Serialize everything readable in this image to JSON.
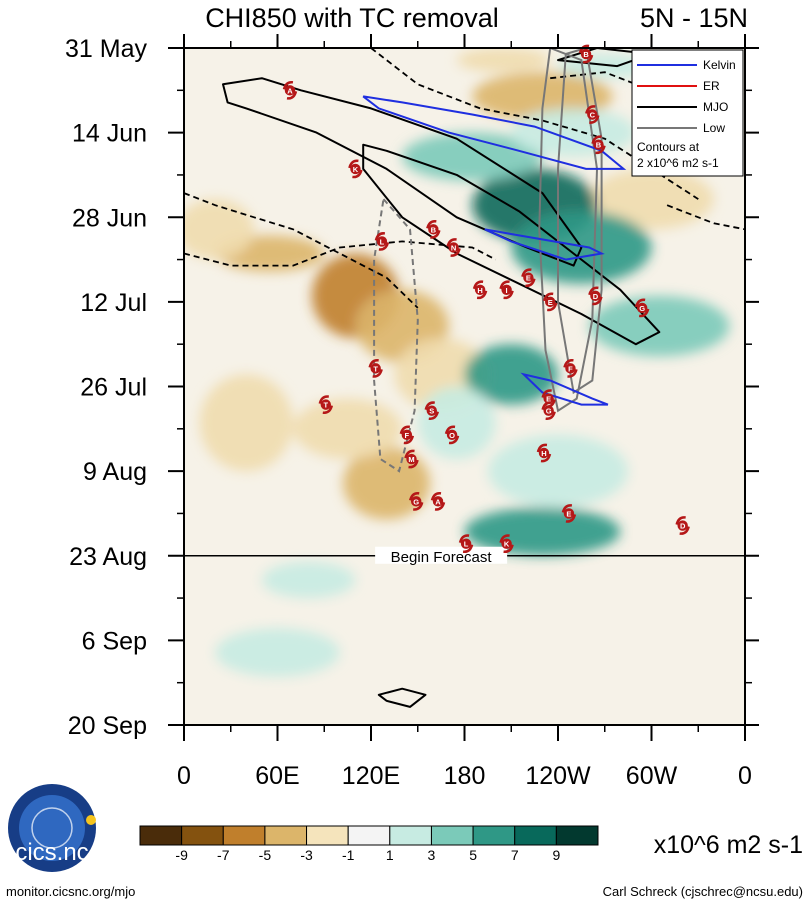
{
  "chart_data": {
    "type": "heatmap",
    "title": "CHI850 with TC removal",
    "subtitle": "5N - 15N",
    "x_ticks": [
      {
        "lon": 0,
        "label": "0"
      },
      {
        "lon": 60,
        "label": "60E"
      },
      {
        "lon": 120,
        "label": "120E"
      },
      {
        "lon": 180,
        "label": "180"
      },
      {
        "lon": 240,
        "label": "120W"
      },
      {
        "lon": 300,
        "label": "60W"
      },
      {
        "lon": 360,
        "label": "0"
      }
    ],
    "x_range": [
      0,
      360
    ],
    "y_ticks": [
      {
        "day": 0,
        "label": "31 May"
      },
      {
        "day": 14,
        "label": "14 Jun"
      },
      {
        "day": 28,
        "label": "28 Jun"
      },
      {
        "day": 42,
        "label": "12 Jul"
      },
      {
        "day": 56,
        "label": "26 Jul"
      },
      {
        "day": 70,
        "label": "9 Aug"
      },
      {
        "day": 84,
        "label": "23 Aug"
      },
      {
        "day": 98,
        "label": "6 Sep"
      },
      {
        "day": 112,
        "label": "20 Sep"
      }
    ],
    "y_range": [
      0,
      112
    ],
    "forecast_line": {
      "day": 84,
      "label": "Begin Forecast"
    },
    "legend": {
      "placement": "top-right",
      "entries": [
        {
          "name": "Kelvin",
          "color": "#1f2fe0"
        },
        {
          "name": "ER",
          "color": "#e01010"
        },
        {
          "name": "MJO",
          "color": "#000000"
        },
        {
          "name": "Low",
          "color": "#777777"
        }
      ],
      "note_line1": "Contours at",
      "note_line2": "2 x10^6 m2 s-1"
    },
    "colorbar": {
      "labels": [
        "-9",
        "-7",
        "-5",
        "-3",
        "-1",
        "1",
        "3",
        "5",
        "7",
        "9"
      ],
      "colors": [
        "#4a2c0a",
        "#84520f",
        "#c07f2c",
        "#dcb56a",
        "#f5e4bc",
        "#f4f4f4",
        "#c7ebe2",
        "#7bcab9",
        "#2f9886",
        "#08695b",
        "#02392f"
      ],
      "units": "x10^6 m2 s-1"
    },
    "field_features": [
      {
        "type": "dry",
        "lon": 55,
        "day": 34,
        "rlon": 35,
        "rday": 3,
        "level": 2
      },
      {
        "type": "dry",
        "lon": 110,
        "day": 41,
        "rlon": 28,
        "rday": 7,
        "level": 3
      },
      {
        "type": "dry",
        "lon": 140,
        "day": 46,
        "rlon": 30,
        "rday": 6,
        "level": 2
      },
      {
        "type": "dry",
        "lon": 130,
        "day": 72,
        "rlon": 28,
        "rday": 6,
        "level": 2
      },
      {
        "type": "dry",
        "lon": 105,
        "day": 63,
        "rlon": 35,
        "rday": 5,
        "level": 1
      },
      {
        "type": "dry",
        "lon": 20,
        "day": 30,
        "rlon": 25,
        "rday": 5,
        "level": 1
      },
      {
        "type": "dry",
        "lon": 230,
        "day": 8,
        "rlon": 45,
        "rday": 4,
        "level": 2
      },
      {
        "type": "dry",
        "lon": 205,
        "day": 2,
        "rlon": 30,
        "rday": 2,
        "level": 1
      },
      {
        "type": "dry",
        "lon": 165,
        "day": 54,
        "rlon": 30,
        "rday": 6,
        "level": 1
      },
      {
        "type": "dry",
        "lon": 40,
        "day": 62,
        "rlon": 30,
        "rday": 8,
        "level": 1
      },
      {
        "type": "dry",
        "lon": 300,
        "day": 25,
        "rlon": 40,
        "rday": 5,
        "level": 1
      },
      {
        "type": "wet",
        "lon": 225,
        "day": 26,
        "rlon": 40,
        "rday": 6,
        "level": 4
      },
      {
        "type": "wet",
        "lon": 255,
        "day": 33,
        "rlon": 45,
        "rday": 6,
        "level": 3
      },
      {
        "type": "wet",
        "lon": 305,
        "day": 46,
        "rlon": 45,
        "rday": 5,
        "level": 2
      },
      {
        "type": "wet",
        "lon": 210,
        "day": 54,
        "rlon": 30,
        "rday": 5,
        "level": 3
      },
      {
        "type": "wet",
        "lon": 230,
        "day": 80,
        "rlon": 50,
        "rday": 4,
        "level": 3
      },
      {
        "type": "wet",
        "lon": 185,
        "day": 18,
        "rlon": 45,
        "rday": 4,
        "level": 2
      },
      {
        "type": "wet",
        "lon": 240,
        "day": 70,
        "rlon": 45,
        "rday": 6,
        "level": 1
      },
      {
        "type": "wet",
        "lon": 175,
        "day": 62,
        "rlon": 25,
        "rday": 6,
        "level": 1
      },
      {
        "type": "wet",
        "lon": 270,
        "day": 3,
        "rlon": 30,
        "rday": 2,
        "level": 1
      },
      {
        "type": "wet",
        "lon": 60,
        "day": 100,
        "rlon": 40,
        "rday": 4,
        "level": 1
      },
      {
        "type": "wet",
        "lon": 80,
        "day": 88,
        "rlon": 30,
        "rday": 3,
        "level": 1
      },
      {
        "type": "wet",
        "lon": 250,
        "day": 14,
        "rlon": 40,
        "rday": 4,
        "level": 1
      }
    ],
    "contours": {
      "kelvin": [
        [
          [
            115,
            8
          ],
          [
            140,
            9
          ],
          [
            185,
            11
          ],
          [
            225,
            13
          ],
          [
            268,
            17
          ],
          [
            282,
            20
          ],
          [
            258,
            20
          ],
          [
            215,
            17
          ],
          [
            170,
            14
          ],
          [
            125,
            10
          ]
        ],
        [
          [
            193,
            30
          ],
          [
            215,
            31
          ],
          [
            260,
            33
          ],
          [
            268,
            34
          ],
          [
            245,
            35
          ],
          [
            210,
            32
          ]
        ],
        [
          [
            218,
            54
          ],
          [
            235,
            55
          ],
          [
            262,
            58
          ],
          [
            272,
            59
          ],
          [
            255,
            59
          ],
          [
            230,
            57
          ]
        ]
      ],
      "mjo": [
        [
          [
            25,
            6
          ],
          [
            50,
            5
          ],
          [
            75,
            7
          ],
          [
            120,
            10
          ],
          [
            175,
            15
          ],
          [
            230,
            24
          ],
          [
            255,
            33
          ],
          [
            250,
            36
          ],
          [
            220,
            33
          ],
          [
            175,
            28
          ],
          [
            130,
            20
          ],
          [
            85,
            14
          ],
          [
            40,
            10
          ],
          [
            28,
            9
          ]
        ],
        [
          [
            115,
            16
          ],
          [
            130,
            17
          ],
          [
            175,
            21
          ],
          [
            215,
            27
          ],
          [
            245,
            33
          ],
          [
            280,
            40
          ],
          [
            305,
            47
          ],
          [
            290,
            49
          ],
          [
            255,
            44
          ],
          [
            215,
            39
          ],
          [
            175,
            34
          ],
          [
            140,
            28
          ],
          [
            115,
            20
          ]
        ],
        [
          [
            240,
            2
          ],
          [
            265,
            0
          ],
          [
            300,
            1
          ],
          [
            278,
            3
          ]
        ],
        [
          [
            125,
            107
          ],
          [
            140,
            106
          ],
          [
            155,
            107
          ],
          [
            145,
            109
          ],
          [
            130,
            108
          ]
        ]
      ],
      "low": [
        [
          [
            235,
            0
          ],
          [
            255,
            2
          ],
          [
            265,
            20
          ],
          [
            262,
            45
          ],
          [
            252,
            58
          ],
          [
            240,
            60
          ],
          [
            232,
            50
          ],
          [
            228,
            30
          ],
          [
            230,
            10
          ]
        ],
        [
          [
            245,
            1
          ],
          [
            258,
            0
          ],
          [
            268,
            15
          ],
          [
            268,
            40
          ],
          [
            262,
            55
          ],
          [
            250,
            57
          ],
          [
            240,
            42
          ],
          [
            240,
            20
          ]
        ]
      ],
      "low_dashed": [
        [
          [
            128,
            25
          ],
          [
            145,
            30
          ],
          [
            150,
            45
          ],
          [
            148,
            60
          ],
          [
            138,
            70
          ],
          [
            126,
            68
          ],
          [
            122,
            55
          ],
          [
            122,
            35
          ]
        ]
      ],
      "dashed": [
        [
          [
            0,
            24
          ],
          [
            20,
            26
          ],
          [
            45,
            28
          ],
          [
            70,
            30
          ],
          [
            100,
            34
          ],
          [
            130,
            38
          ],
          [
            150,
            43
          ]
        ],
        [
          [
            0,
            34
          ],
          [
            30,
            36
          ],
          [
            70,
            36
          ],
          [
            100,
            33
          ],
          [
            140,
            32
          ],
          [
            185,
            33
          ],
          [
            200,
            35
          ]
        ],
        [
          [
            120,
            0
          ],
          [
            150,
            6
          ],
          [
            190,
            10
          ],
          [
            230,
            12
          ],
          [
            270,
            15
          ],
          [
            300,
            20
          ],
          [
            330,
            25
          ]
        ],
        [
          [
            235,
            5
          ],
          [
            270,
            4
          ],
          [
            300,
            7
          ],
          [
            330,
            14
          ],
          [
            355,
            20
          ]
        ],
        [
          [
            310,
            26
          ],
          [
            340,
            29
          ],
          [
            360,
            30
          ]
        ]
      ]
    },
    "storms": [
      {
        "label": "A",
        "lon": 68,
        "day": 7
      },
      {
        "label": "B",
        "lon": 258,
        "day": 1
      },
      {
        "label": "C",
        "lon": 262,
        "day": 11
      },
      {
        "label": "B",
        "lon": 266,
        "day": 16
      },
      {
        "label": "K",
        "lon": 110,
        "day": 20
      },
      {
        "label": "B",
        "lon": 160,
        "day": 30
      },
      {
        "label": "L",
        "lon": 127,
        "day": 32
      },
      {
        "label": "N",
        "lon": 173,
        "day": 33
      },
      {
        "label": "E",
        "lon": 221,
        "day": 38
      },
      {
        "label": "H",
        "lon": 190,
        "day": 40
      },
      {
        "label": "I",
        "lon": 207,
        "day": 40
      },
      {
        "label": "D",
        "lon": 264,
        "day": 41
      },
      {
        "label": "E",
        "lon": 235,
        "day": 42
      },
      {
        "label": "G",
        "lon": 294,
        "day": 43
      },
      {
        "label": "F",
        "lon": 248,
        "day": 53
      },
      {
        "label": "T",
        "lon": 123,
        "day": 53
      },
      {
        "label": "E",
        "lon": 234,
        "day": 58
      },
      {
        "label": "G",
        "lon": 234,
        "day": 60
      },
      {
        "label": "T",
        "lon": 91,
        "day": 59
      },
      {
        "label": "S",
        "lon": 159,
        "day": 60
      },
      {
        "label": "F",
        "lon": 143,
        "day": 64
      },
      {
        "label": "O",
        "lon": 172,
        "day": 64
      },
      {
        "label": "H",
        "lon": 231,
        "day": 67
      },
      {
        "label": "M",
        "lon": 146,
        "day": 68
      },
      {
        "label": "G",
        "lon": 149,
        "day": 75
      },
      {
        "label": "A",
        "lon": 163,
        "day": 75
      },
      {
        "label": "E",
        "lon": 247,
        "day": 77
      },
      {
        "label": "D",
        "lon": 320,
        "day": 79
      },
      {
        "label": "L",
        "lon": 181,
        "day": 82
      },
      {
        "label": "K",
        "lon": 207,
        "day": 82
      }
    ]
  },
  "footer": {
    "logo_text": "cics.nc",
    "url": "monitor.cicsnc.org/mjo",
    "credit": "Carl Schreck (cjschrec@ncsu.edu)"
  }
}
